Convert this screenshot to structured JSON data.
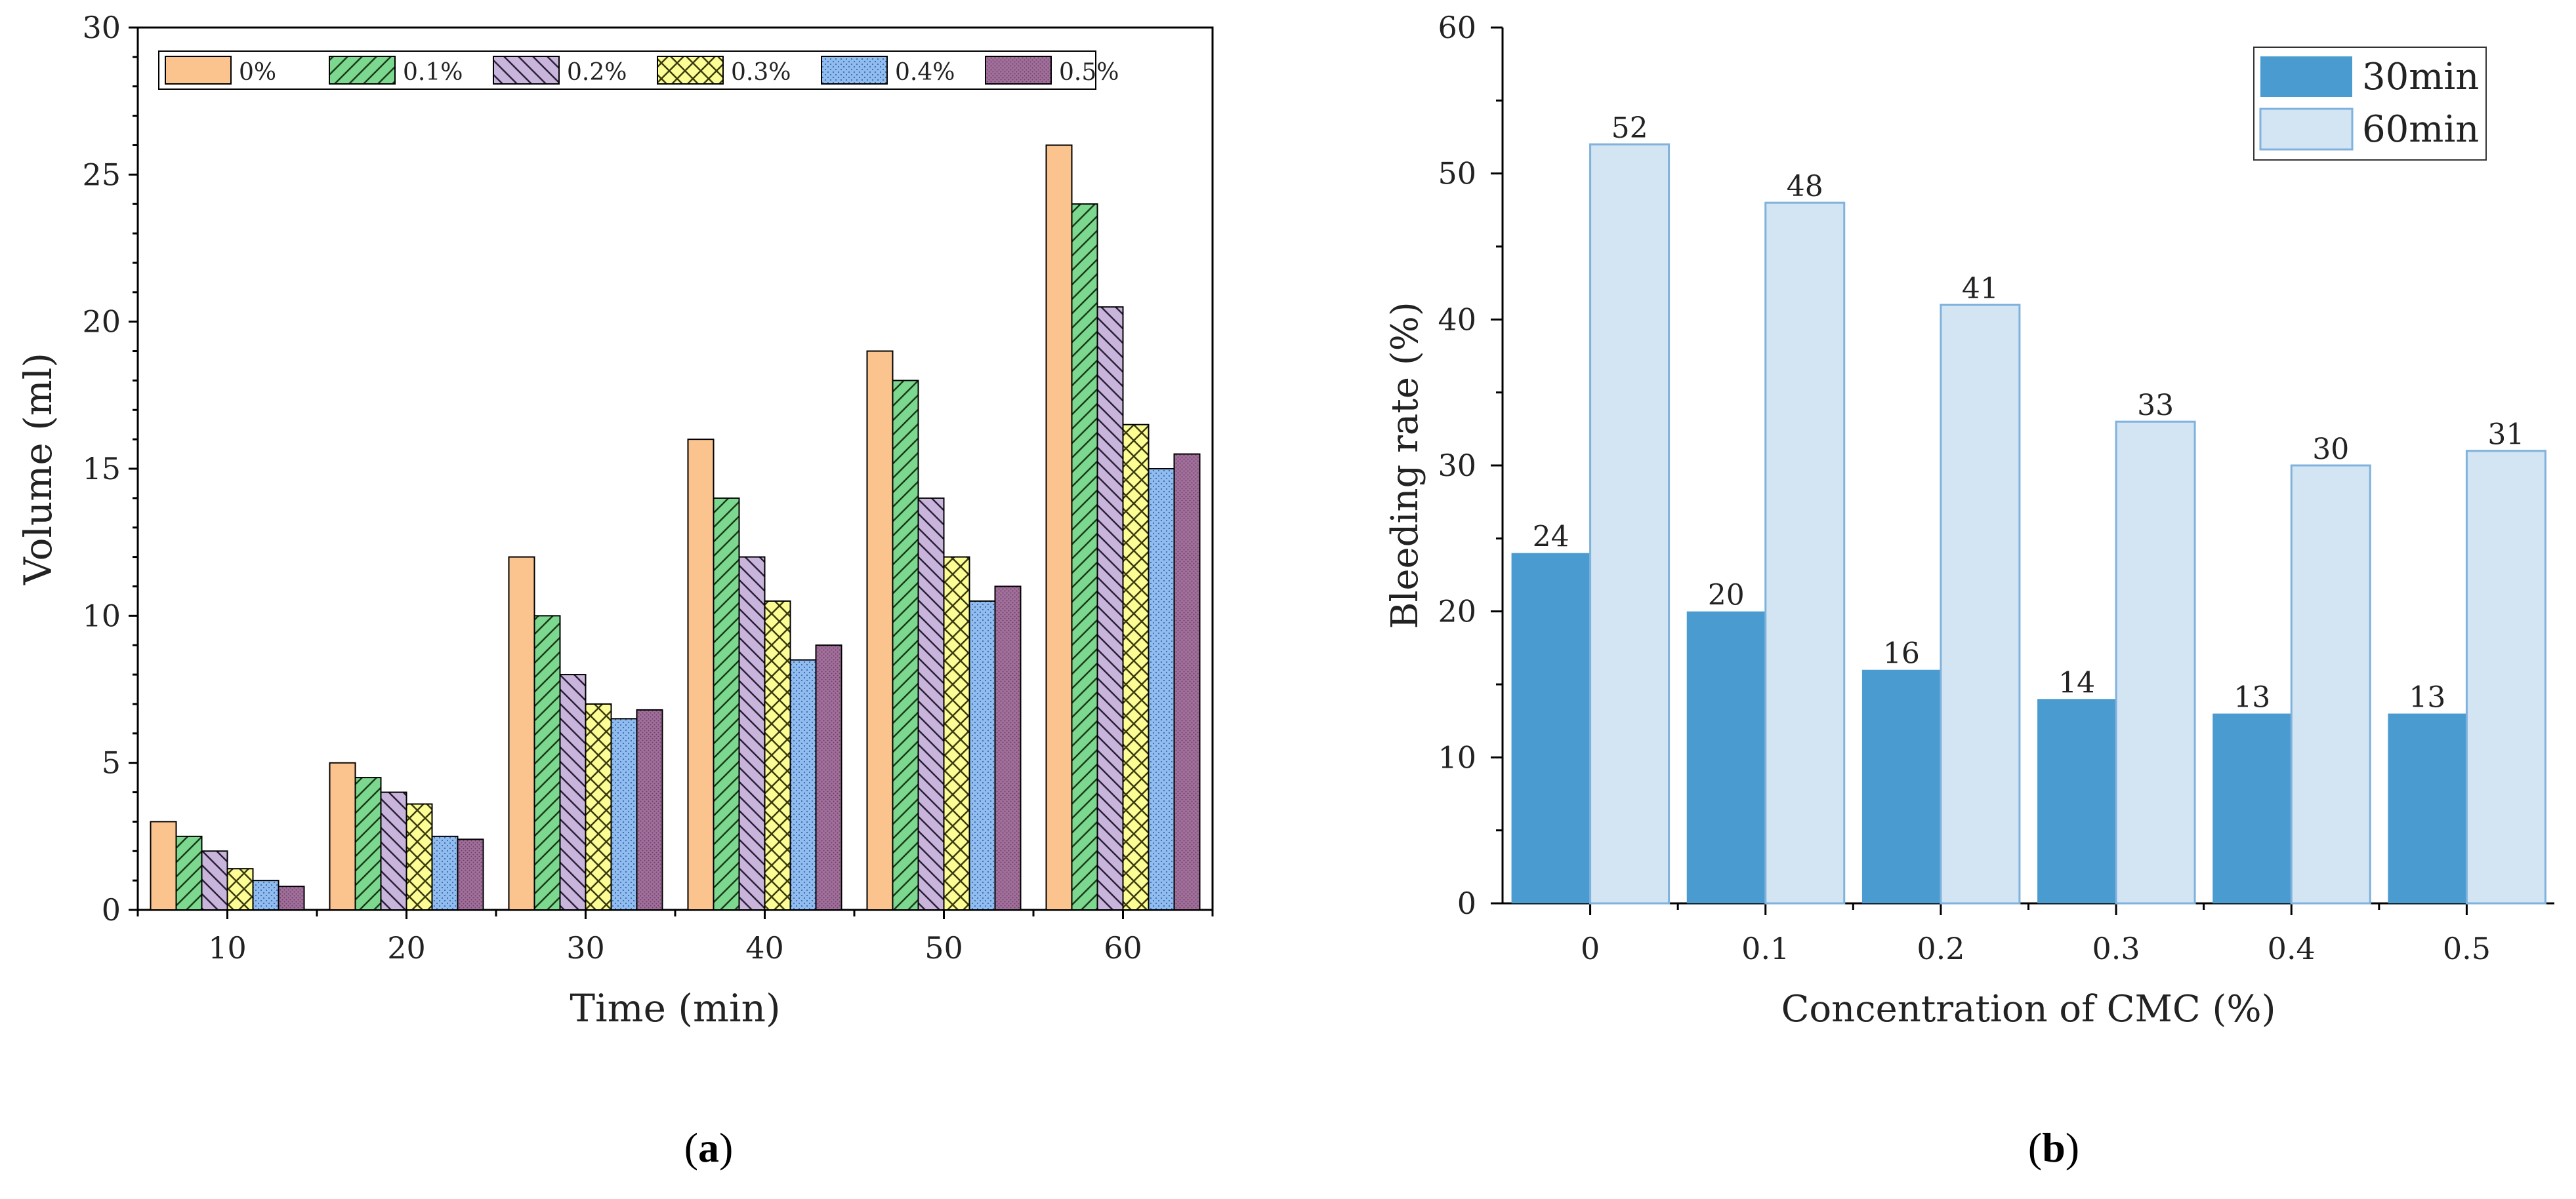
{
  "colors": {
    "a_series": [
      "#fbc48f",
      "#7bd88e",
      "#c9b4dc",
      "#fdfd95",
      "#90bcf0",
      "#a06f9a"
    ],
    "b_30min": "#4a9bd0",
    "b_60min": "#d3e4f3",
    "b_60min_edge": "#7fb2dc"
  },
  "chart_data": [
    {
      "type": "bar",
      "panel": "a",
      "panel_label": "(a)",
      "panel_letter": "a",
      "title": "",
      "xlabel": "Time (min)",
      "ylabel": "Volume (ml)",
      "categories": [
        "10",
        "20",
        "30",
        "40",
        "50",
        "60"
      ],
      "ylim": [
        0,
        30
      ],
      "yticks": [
        "0",
        "5",
        "10",
        "15",
        "20",
        "25",
        "30"
      ],
      "legend_position": "top",
      "series": [
        {
          "name": "0%",
          "pattern": "solid",
          "values": [
            3,
            5,
            12,
            16,
            19,
            26
          ]
        },
        {
          "name": "0.1%",
          "pattern": "forward-hatch",
          "values": [
            2.5,
            4.5,
            10,
            14,
            18,
            24
          ]
        },
        {
          "name": "0.2%",
          "pattern": "back-hatch",
          "values": [
            2,
            4,
            8,
            12,
            14,
            20.5
          ]
        },
        {
          "name": "0.3%",
          "pattern": "cross-hatch",
          "values": [
            1.4,
            3.6,
            7,
            10.5,
            12,
            16.5
          ]
        },
        {
          "name": "0.4%",
          "pattern": "dots",
          "values": [
            1,
            2.5,
            6.5,
            8.5,
            10.5,
            15
          ]
        },
        {
          "name": "0.5%",
          "pattern": "dense-dots",
          "values": [
            0.8,
            2.4,
            6.8,
            9,
            11,
            15.5
          ]
        }
      ]
    },
    {
      "type": "bar",
      "panel": "b",
      "panel_label": "(b)",
      "panel_letter": "b",
      "title": "",
      "xlabel": "Concentration of CMC (%)",
      "ylabel": "Bleeding rate (%)",
      "categories": [
        "0",
        "0.1",
        "0.2",
        "0.3",
        "0.4",
        "0.5"
      ],
      "ylim": [
        0,
        60
      ],
      "yticks": [
        "0",
        "10",
        "20",
        "30",
        "40",
        "50",
        "60"
      ],
      "legend_position": "top-right",
      "series": [
        {
          "name": "30min",
          "values": [
            24,
            20,
            16,
            14,
            13,
            13
          ],
          "labels": [
            "24",
            "20",
            "16",
            "14",
            "13",
            "13"
          ]
        },
        {
          "name": "60min",
          "values": [
            52,
            48,
            41,
            33,
            30,
            31
          ],
          "labels": [
            "52",
            "48",
            "41",
            "33",
            "30",
            "31"
          ]
        }
      ]
    }
  ]
}
